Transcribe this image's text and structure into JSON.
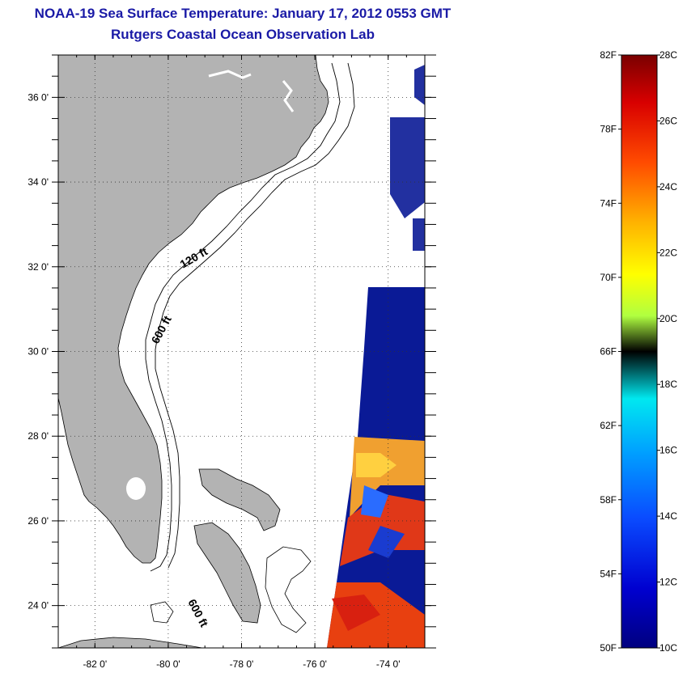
{
  "title": {
    "line1": "NOAA-19 Sea Surface Temperature:  January 17, 2012 0553 GMT",
    "line2": "Rutgers Coastal Ocean Observation Lab"
  },
  "map": {
    "lon_ticks": [
      {
        "value": -82,
        "label": "-82 0'"
      },
      {
        "value": -80,
        "label": "-80 0'"
      },
      {
        "value": -78,
        "label": "-78 0'"
      },
      {
        "value": -76,
        "label": "-76 0'"
      },
      {
        "value": -74,
        "label": "-74 0'"
      }
    ],
    "lat_ticks": [
      {
        "value": 24,
        "label": "24 0'"
      },
      {
        "value": 26,
        "label": "26 0'"
      },
      {
        "value": 28,
        "label": "28 0'"
      },
      {
        "value": 30,
        "label": "30 0'"
      },
      {
        "value": 32,
        "label": "32 0'"
      },
      {
        "value": 34,
        "label": "34 0'"
      },
      {
        "value": 36,
        "label": "36 0'"
      }
    ],
    "lon_range": [
      -83,
      -73
    ],
    "lat_range": [
      23,
      37
    ],
    "grid": "dotted",
    "depth_labels": [
      "120 ft",
      "600 ft",
      "600 ft"
    ],
    "colors": {
      "land": "#b3b3b3",
      "ocean": "#ffffff",
      "cold": "#0a1a96",
      "warm": "#e84010"
    }
  },
  "colorbar": {
    "colors": [
      "#00008f",
      "#0000d8",
      "#1a4cff",
      "#0099ff",
      "#00e6ff",
      "#40ff c0",
      "#a0ff60",
      "#ffff00",
      "#ffb000",
      "#ff5000",
      "#e00000",
      "#800000"
    ],
    "fahrenheit_labels": [
      "82F",
      "78F",
      "74F",
      "70F",
      "66F",
      "62F",
      "58F",
      "54F",
      "50F"
    ],
    "celsius_labels": [
      "28C",
      "26C",
      "24C",
      "22C",
      "20C",
      "18C",
      "16C",
      "14C",
      "12C",
      "10C"
    ],
    "f_range": [
      50,
      82
    ],
    "c_range": [
      10,
      28
    ]
  }
}
